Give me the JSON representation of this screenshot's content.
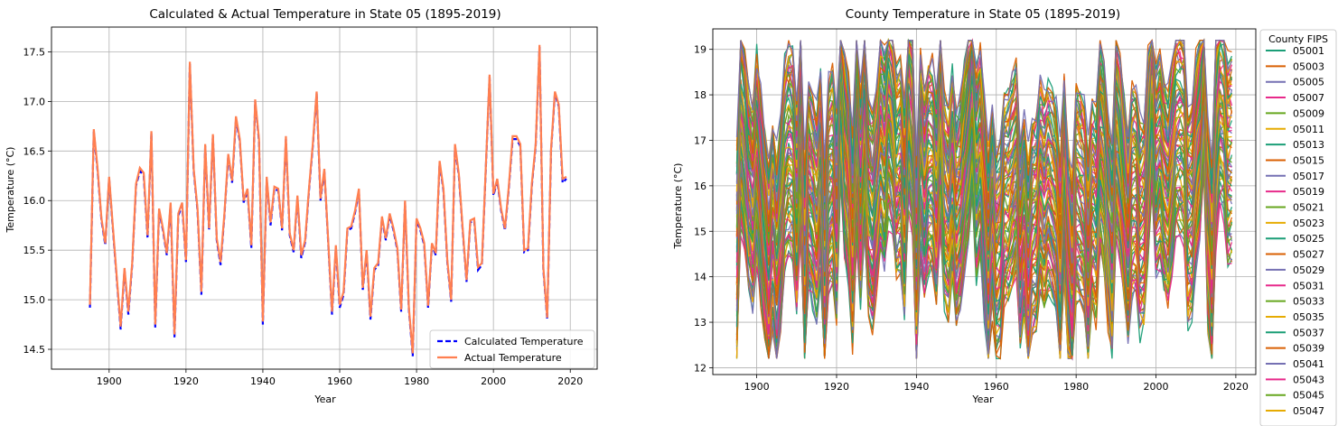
{
  "colors": {
    "calculated": "#0000ff",
    "actual": "#ff7f50",
    "grid": "#b0b0b0",
    "palette": [
      "#1b9e77",
      "#d95f02",
      "#7570b3",
      "#e7298a",
      "#66a61e",
      "#e6ab02"
    ]
  },
  "chart_data": [
    {
      "type": "line",
      "title": "Calculated & Actual Temperature in State 05 (1895-2019)",
      "xlabel": "Year",
      "ylabel": "Temperature (°C)",
      "xlim": [
        1885,
        2027
      ],
      "ylim": [
        14.3,
        17.75
      ],
      "xticks": [
        1900,
        1920,
        1940,
        1960,
        1980,
        2000,
        2020
      ],
      "yticks": [
        14.5,
        15.0,
        15.5,
        16.0,
        16.5,
        17.0,
        17.5
      ],
      "grid": true,
      "legend": "lower-right",
      "anchor_years": [
        1895,
        1896,
        1897,
        1898,
        1899,
        1900,
        1901,
        1902,
        1903,
        1904,
        1905,
        1906,
        1907,
        1908,
        1909,
        1910,
        1911,
        1912,
        1913,
        1914,
        1915,
        1916,
        1917,
        1918,
        1919,
        1920,
        1921,
        1922,
        1923,
        1924,
        1925,
        1926,
        1927,
        1928,
        1929,
        1930,
        1931,
        1932,
        1933,
        1934,
        1935,
        1936,
        1937,
        1938,
        1939,
        1940,
        1941,
        1942,
        1943,
        1944,
        1945,
        1946,
        1947,
        1948,
        1949,
        1950,
        1951,
        1952,
        1953,
        1954,
        1955,
        1956,
        1957,
        1958,
        1959,
        1960,
        1961,
        1962,
        1963,
        1964,
        1965,
        1966,
        1967,
        1968,
        1969,
        1970,
        1971,
        1972,
        1973,
        1974,
        1975,
        1976,
        1977,
        1978,
        1979,
        1980,
        1981,
        1982,
        1983,
        1984,
        1985,
        1986,
        1987,
        1988,
        1989,
        1990,
        1991,
        1992,
        1993,
        1994,
        1995,
        1996,
        1997,
        1998,
        1999,
        2000,
        2001,
        2002,
        2003,
        2004,
        2005,
        2006,
        2007,
        2008,
        2009,
        2010,
        2011,
        2012,
        2013,
        2014,
        2015,
        2016,
        2017,
        2018,
        2019
      ],
      "series": [
        {
          "name": "Calculated Temperature",
          "style": "dashed",
          "values": [
            14.92,
            16.7,
            16.3,
            15.8,
            15.55,
            16.22,
            15.7,
            15.2,
            14.7,
            15.3,
            14.85,
            15.35,
            16.15,
            16.3,
            16.25,
            15.62,
            16.68,
            14.72,
            15.9,
            15.7,
            15.45,
            15.95,
            14.62,
            15.85,
            15.95,
            15.38,
            17.38,
            16.3,
            15.9,
            15.05,
            16.55,
            15.7,
            16.65,
            15.6,
            15.35,
            15.85,
            16.45,
            16.18,
            16.82,
            16.6,
            15.98,
            16.1,
            15.52,
            17.0,
            16.6,
            14.75,
            16.22,
            15.75,
            16.12,
            16.1,
            15.7,
            16.62,
            15.65,
            15.48,
            16.03,
            15.42,
            15.58,
            16.1,
            16.55,
            17.08,
            16.0,
            16.3,
            15.58,
            14.85,
            15.52,
            14.92,
            15.05,
            15.7,
            15.72,
            15.88,
            16.1,
            15.1,
            15.48,
            14.8,
            15.3,
            15.35,
            15.82,
            15.6,
            15.85,
            15.7,
            15.5,
            14.88,
            15.98,
            14.9,
            14.43,
            15.8,
            15.7,
            15.55,
            14.92,
            15.55,
            15.45,
            16.38,
            16.1,
            15.38,
            14.98,
            16.55,
            16.25,
            15.7,
            15.18,
            15.78,
            15.8,
            15.3,
            15.35,
            16.3,
            17.25,
            16.05,
            16.2,
            15.9,
            15.7,
            16.12,
            16.62,
            16.62,
            16.55,
            15.48,
            15.5,
            16.15,
            16.55,
            17.55,
            15.3,
            14.8,
            16.5,
            17.08,
            16.95,
            16.18,
            16.22
          ]
        },
        {
          "name": "Actual Temperature",
          "style": "solid",
          "values": [
            14.95,
            16.72,
            16.32,
            15.82,
            15.57,
            16.24,
            15.72,
            15.22,
            14.73,
            15.32,
            14.88,
            15.37,
            16.17,
            16.33,
            16.28,
            15.65,
            16.7,
            14.75,
            15.92,
            15.72,
            15.47,
            15.98,
            14.65,
            15.87,
            15.98,
            15.4,
            17.4,
            16.32,
            15.92,
            15.08,
            16.57,
            15.72,
            16.67,
            15.62,
            15.38,
            15.87,
            16.47,
            16.2,
            16.85,
            16.62,
            16.0,
            16.12,
            15.55,
            17.02,
            16.62,
            14.78,
            16.24,
            15.78,
            16.14,
            16.12,
            15.72,
            16.65,
            15.67,
            15.5,
            16.05,
            15.45,
            15.6,
            16.12,
            16.57,
            17.1,
            16.02,
            16.32,
            15.6,
            14.88,
            15.55,
            14.95,
            15.08,
            15.72,
            15.74,
            15.9,
            16.12,
            15.12,
            15.5,
            14.83,
            15.32,
            15.37,
            15.84,
            15.62,
            15.87,
            15.72,
            15.52,
            14.9,
            16.0,
            14.92,
            14.46,
            15.82,
            15.72,
            15.57,
            14.94,
            15.57,
            15.47,
            16.4,
            16.12,
            15.4,
            15.0,
            16.57,
            16.27,
            15.72,
            15.2,
            15.8,
            15.82,
            15.33,
            15.37,
            16.32,
            17.27,
            16.07,
            16.22,
            15.92,
            15.72,
            16.14,
            16.65,
            16.65,
            16.57,
            15.5,
            15.52,
            16.17,
            16.57,
            17.57,
            15.32,
            14.82,
            16.52,
            17.1,
            16.97,
            16.22,
            16.24
          ]
        }
      ]
    },
    {
      "type": "line",
      "title": "County Temperature in State 05 (1895-2019)",
      "xlabel": "Year",
      "ylabel": "Temperature (°C)",
      "xlim": [
        1889,
        2025
      ],
      "ylim": [
        11.85,
        19.45
      ],
      "xticks": [
        1900,
        1920,
        1940,
        1960,
        1980,
        2000,
        2020
      ],
      "yticks": [
        12,
        13,
        14,
        15,
        16,
        17,
        18,
        19
      ],
      "grid": true,
      "legend_title": "County FIPS",
      "legend": "outside-right",
      "counties": [
        "05001",
        "05003",
        "05005",
        "05007",
        "05009",
        "05011",
        "05013",
        "05015",
        "05017",
        "05019",
        "05021",
        "05023",
        "05025",
        "05027",
        "05029",
        "05031",
        "05033",
        "05035",
        "05037",
        "05039",
        "05041",
        "05043",
        "05045",
        "05047"
      ],
      "county_count": 75,
      "county_offset_range": [
        -2.2,
        2.4
      ]
    }
  ]
}
